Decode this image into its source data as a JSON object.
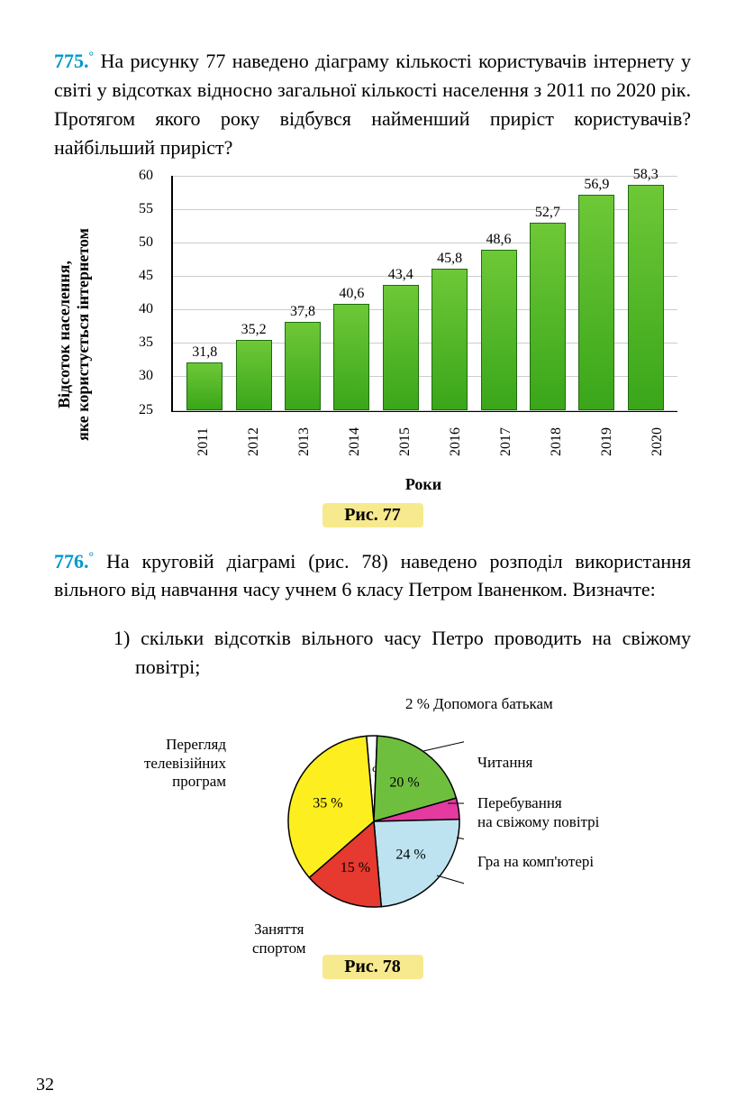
{
  "task775": {
    "number": "775.",
    "degree": "°",
    "text": "На рисунку 77 наведено діаграму кількості користувачів інтернету у світі у відсотках відносно загальної кількості населення з 2011 по 2020 рік. Протягом якого року відбувся найменший приріст користувачів? найбільший приріст?"
  },
  "bar_chart": {
    "type": "bar",
    "y_axis_label": "Відсоток населення,\nяке користується інтернетом",
    "x_axis_label": "Роки",
    "categories": [
      "2011",
      "2012",
      "2013",
      "2014",
      "2015",
      "2016",
      "2017",
      "2018",
      "2019",
      "2020"
    ],
    "values": [
      31.8,
      35.2,
      37.8,
      40.6,
      43.4,
      45.8,
      48.6,
      52.7,
      56.9,
      58.3
    ],
    "value_labels": [
      "31,8",
      "35,2",
      "37,8",
      "40,6",
      "43,4",
      "45,8",
      "48,6",
      "52,7",
      "56,9",
      "58,3"
    ],
    "ylim": [
      25,
      60
    ],
    "ytick_step": 5,
    "yticks": [
      25,
      30,
      35,
      40,
      45,
      50,
      55,
      60
    ],
    "bar_fill_top": "#6ec837",
    "bar_fill_bottom": "#3aa61a",
    "bar_border": "#1d6b0c",
    "grid_color": "#cccccc",
    "background": "#ffffff",
    "label_fontsize": 16,
    "caption": "Рис. 77"
  },
  "task776": {
    "number": "776.",
    "degree": "°",
    "text": "На круговій діаграмі (рис. 78) наведено розподіл використання вільного від навчання часу учнем 6 класу Петром Іваненком. Визначте:",
    "item1_num": "1)",
    "item1": "скільки відсотків вільного часу Петро проводить на свіжому повітрі;"
  },
  "pie_chart": {
    "type": "pie",
    "slices": [
      {
        "label": "Допомога батькам",
        "percent": 2,
        "percent_label": "2 %",
        "color": "#ffffff"
      },
      {
        "label": "Читання",
        "percent": 20,
        "percent_label": "20 %",
        "color": "#6fbf3f"
      },
      {
        "label": "Перебування\nна свіжому повітрі",
        "percent": 4,
        "percent_label": "",
        "color": "#e53aa0"
      },
      {
        "label": "Гра на комп'ютері",
        "percent": 24,
        "percent_label": "24 %",
        "color": "#bde3f0"
      },
      {
        "label": "Заняття\nспортом",
        "percent": 15,
        "percent_label": "15 %",
        "color": "#e6392f"
      },
      {
        "label": "Перегляд\nтелевізійних\nпрограм",
        "percent": 35,
        "percent_label": "35 %",
        "color": "#fdee1f"
      }
    ],
    "stroke": "#000000",
    "caption": "Рис. 78",
    "radius": 95
  },
  "page_number": "32"
}
